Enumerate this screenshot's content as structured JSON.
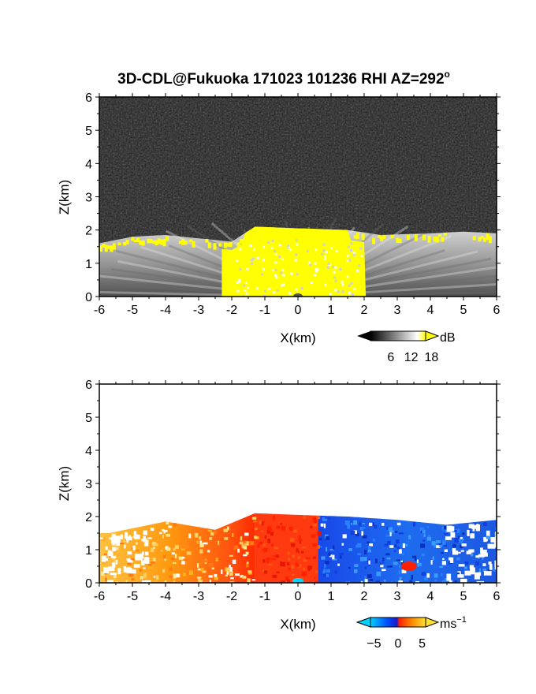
{
  "chart_data": [
    {
      "type": "heatmap",
      "title": "3D-CDL@Fukuoka 171023 101236 RHI AZ=292",
      "title_suffix": "o",
      "xlabel": "X(km)",
      "ylabel": "Z(km)",
      "xlim": [
        -6,
        6
      ],
      "ylim": [
        0,
        6
      ],
      "xticks": [
        "-6",
        "-5",
        "-4",
        "-3",
        "-2",
        "-1",
        "0",
        "1",
        "2",
        "3",
        "4",
        "5",
        "6"
      ],
      "yticks": [
        "0",
        "1",
        "2",
        "3",
        "4",
        "5",
        "6"
      ],
      "x_values": [
        -6,
        -5,
        -4,
        -3,
        -2,
        -1,
        0,
        1,
        2,
        3,
        4,
        5,
        6
      ],
      "y_values": [
        0,
        1,
        2,
        3,
        4,
        5,
        6
      ],
      "grid": false,
      "colorbar": {
        "unit": "dB",
        "ticks": [
          "6",
          "12",
          "18"
        ],
        "tick_values": [
          6,
          12,
          18
        ],
        "range": [
          0,
          20
        ],
        "colors": [
          "#000000",
          "#ffffff",
          "#ffff00"
        ]
      },
      "echo_top_km": [
        {
          "x": -6,
          "z": 1.6
        },
        {
          "x": -5,
          "z": 1.8
        },
        {
          "x": -4,
          "z": 1.85
        },
        {
          "x": -3,
          "z": 1.75
        },
        {
          "x": -2,
          "z": 1.65
        },
        {
          "x": -1.3,
          "z": 2.1
        },
        {
          "x": 0,
          "z": 2.05
        },
        {
          "x": 1.5,
          "z": 2.0
        },
        {
          "x": 2.5,
          "z": 1.85
        },
        {
          "x": 4,
          "z": 1.9
        },
        {
          "x": 5,
          "z": 1.95
        },
        {
          "x": 6,
          "z": 1.9
        }
      ]
    },
    {
      "type": "heatmap",
      "xlabel": "X(km)",
      "ylabel": "Z(km)",
      "xlim": [
        -6,
        6
      ],
      "ylim": [
        0,
        6
      ],
      "xticks": [
        "-6",
        "-5",
        "-4",
        "-3",
        "-2",
        "-1",
        "0",
        "1",
        "2",
        "3",
        "4",
        "5",
        "6"
      ],
      "yticks": [
        "0",
        "1",
        "2",
        "3",
        "4",
        "5",
        "6"
      ],
      "x_values": [
        -6,
        -5,
        -4,
        -3,
        -2,
        -1,
        0,
        1,
        2,
        3,
        4,
        5,
        6
      ],
      "y_values": [
        0,
        1,
        2,
        3,
        4,
        5,
        6
      ],
      "grid": false,
      "colorbar": {
        "unit": "ms",
        "unit_sup": "−1",
        "ticks": [
          "−5",
          "0",
          "5"
        ],
        "tick_values": [
          -5,
          0,
          5
        ],
        "range": [
          -8,
          8
        ],
        "colors": [
          "#00d0ff",
          "#0050ff",
          "#1a1acc",
          "#ff2000",
          "#ff8a00",
          "#ffe030"
        ]
      },
      "echo_top_km": [
        {
          "x": -5.7,
          "z": 1.5
        },
        {
          "x": -4,
          "z": 1.85
        },
        {
          "x": -2.5,
          "z": 1.6
        },
        {
          "x": -1.3,
          "z": 2.1
        },
        {
          "x": 0,
          "z": 2.05
        },
        {
          "x": 1.5,
          "z": 2.0
        },
        {
          "x": 3,
          "z": 1.9
        },
        {
          "x": 4.5,
          "z": 1.75
        },
        {
          "x": 6,
          "z": 1.9
        }
      ],
      "velocity_regions_ms": [
        {
          "x_range": [
            -6,
            -1.3
          ],
          "velocity": 4
        },
        {
          "x_range": [
            -1.3,
            0.6
          ],
          "velocity": 1
        },
        {
          "x_range": [
            0.6,
            6
          ],
          "velocity": -4
        }
      ]
    }
  ]
}
